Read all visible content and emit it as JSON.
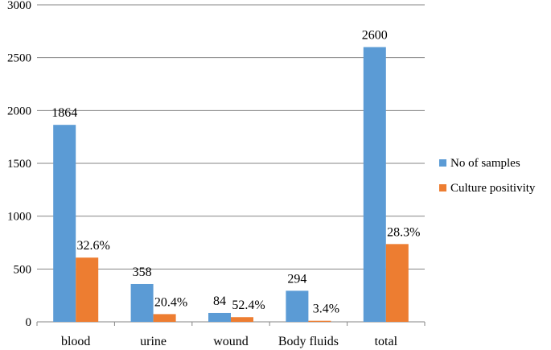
{
  "chart_data": {
    "type": "bar",
    "title": "",
    "xlabel": "",
    "ylabel": "",
    "ylim": [
      0,
      3000
    ],
    "yticks": [
      0,
      500,
      1000,
      1500,
      2000,
      2500,
      3000
    ],
    "grid": true,
    "legend_position": "right",
    "categories": [
      "blood",
      "urine",
      "wound",
      "Body fluids",
      "total"
    ],
    "series": [
      {
        "name": "No of samples",
        "color": "#5b9bd5",
        "values": [
          1864,
          358,
          84,
          294,
          2600
        ],
        "labels": [
          "1864",
          "358",
          "84",
          "294",
          "2600"
        ]
      },
      {
        "name": "Culture positivity",
        "color": "#ed7d31",
        "values": [
          608,
          73,
          44,
          10,
          736
        ],
        "labels": [
          "32.6%",
          "20.4%",
          "52.4%",
          "3.4%",
          "28.3%"
        ]
      }
    ]
  }
}
